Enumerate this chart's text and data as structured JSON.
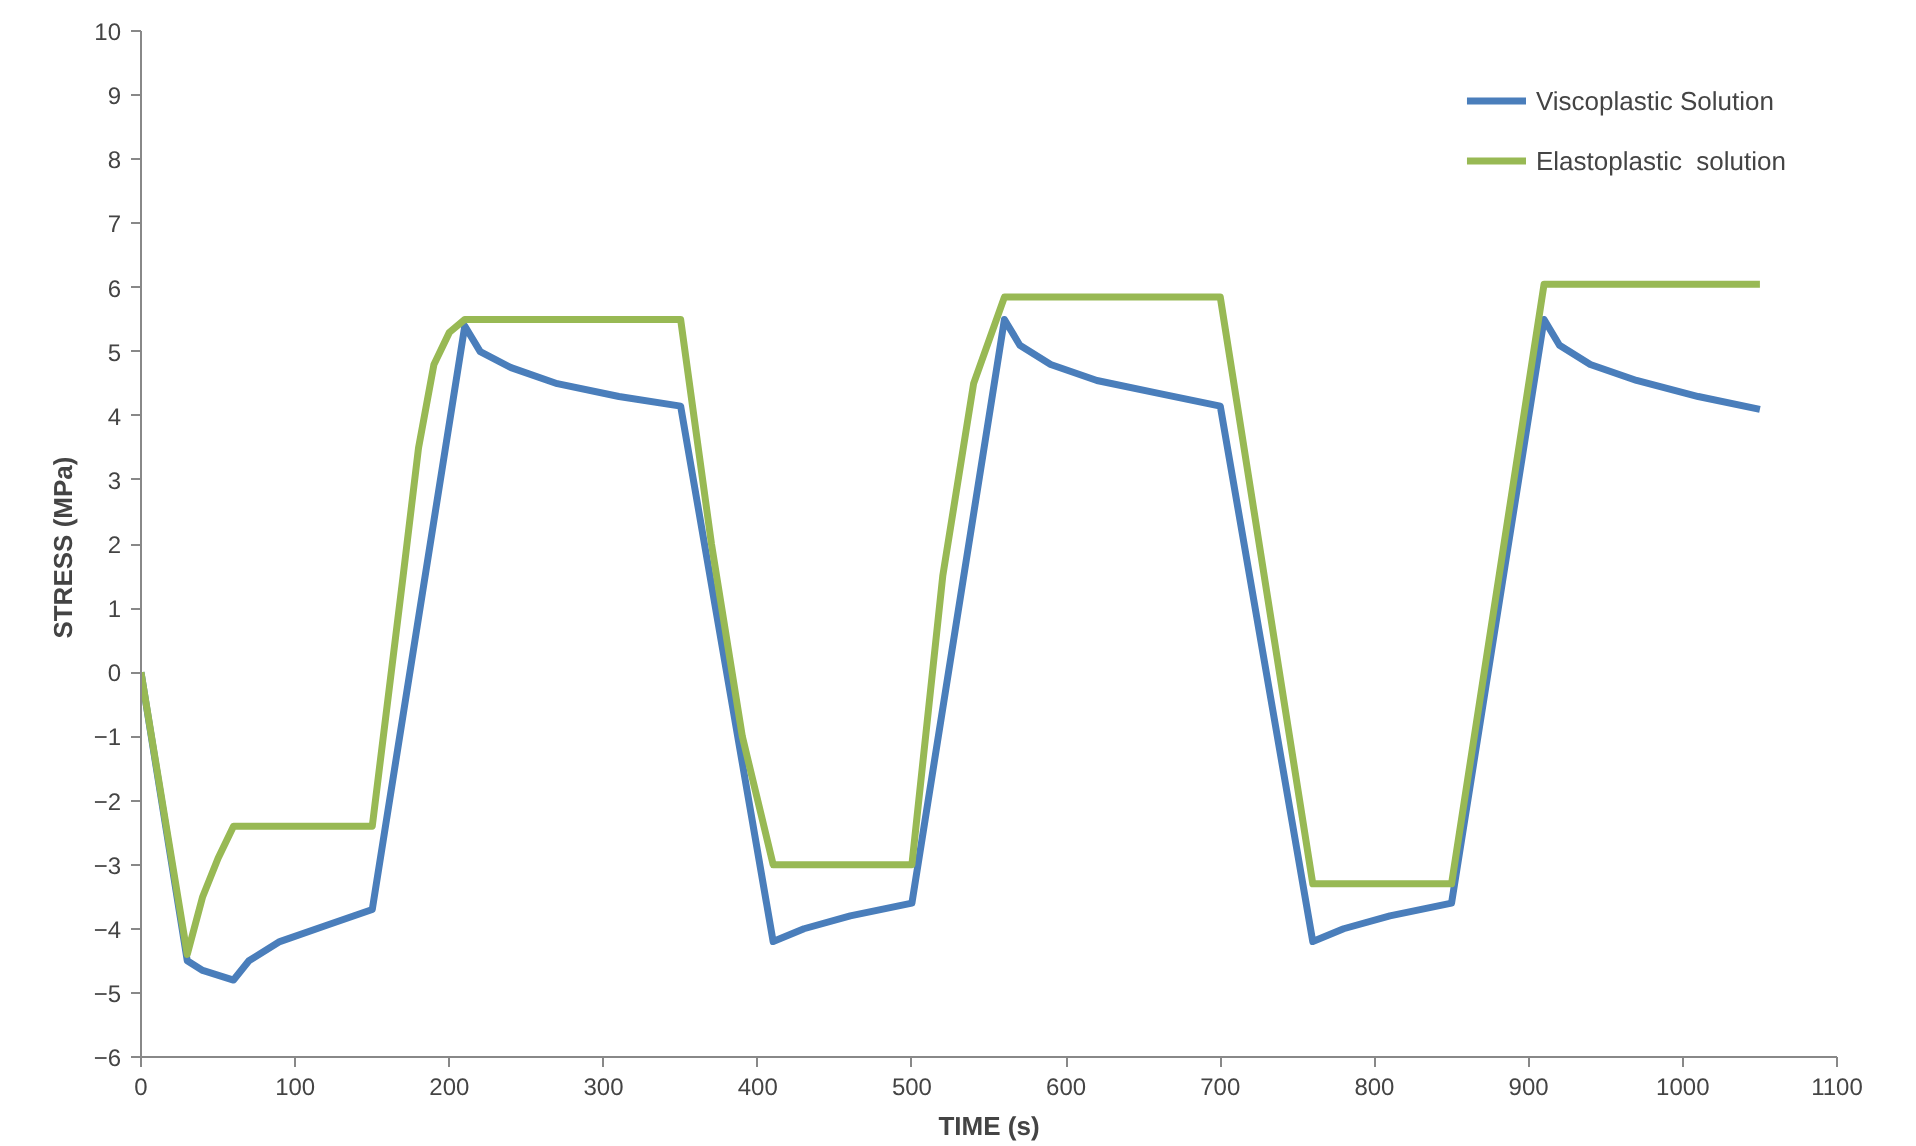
{
  "chart_data": {
    "type": "line",
    "xlabel": "TIME (s)",
    "ylabel": "STRESS  (MPa)",
    "xlim": [
      0,
      1100
    ],
    "xticks": [
      0,
      100,
      200,
      300,
      400,
      500,
      600,
      700,
      800,
      900,
      1000,
      1100
    ],
    "ylim": [
      -6,
      10
    ],
    "yticks": [
      -6,
      -5,
      -4,
      -3,
      -2,
      -1,
      0,
      1,
      2,
      3,
      4,
      5,
      6,
      7,
      8,
      9,
      10
    ],
    "grid": false,
    "legend": "top right",
    "marker": "none",
    "line_style": "solid",
    "series": [
      {
        "name": "Viscoplastic Solution",
        "color": "#4a7ebb",
        "x": [
          0,
          30,
          40,
          60,
          70,
          90,
          120,
          150,
          210,
          220,
          240,
          270,
          310,
          350,
          410,
          430,
          460,
          500,
          560,
          570,
          590,
          620,
          660,
          700,
          760,
          780,
          810,
          850,
          910,
          920,
          940,
          970,
          1010,
          1050
        ],
        "values": [
          0,
          -4.5,
          -4.65,
          -4.8,
          -4.5,
          -4.2,
          -3.95,
          -3.7,
          5.4,
          5.0,
          4.75,
          4.5,
          4.3,
          4.15,
          -4.2,
          -4.0,
          -3.8,
          -3.6,
          5.5,
          5.1,
          4.8,
          4.55,
          4.35,
          4.15,
          -4.2,
          -4.0,
          -3.8,
          -3.6,
          5.5,
          5.1,
          4.8,
          4.55,
          4.3,
          4.1
        ]
      },
      {
        "name": "Elastoplastic  solution",
        "color": "#98b954",
        "x": [
          0,
          30,
          40,
          50,
          60,
          150,
          170,
          180,
          190,
          200,
          210,
          350,
          370,
          390,
          410,
          500,
          520,
          540,
          560,
          700,
          760,
          850,
          910,
          1050
        ],
        "values": [
          0,
          -4.4,
          -3.5,
          -2.9,
          -2.4,
          -2.4,
          1.5,
          3.5,
          4.8,
          5.3,
          5.5,
          5.5,
          2,
          -1,
          -3,
          -3,
          1.5,
          4.5,
          5.85,
          5.85,
          -3.3,
          -3.3,
          6.05,
          6.05
        ]
      }
    ]
  }
}
